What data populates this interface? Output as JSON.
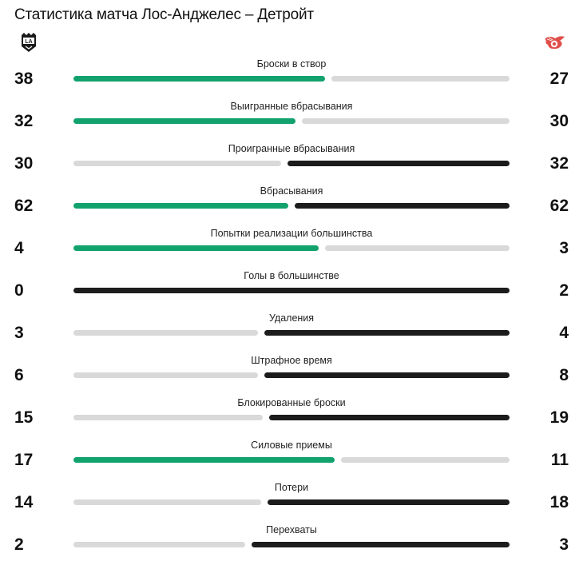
{
  "title": "Статистика матча Лос-Анджелес – Детройт",
  "teams": {
    "home": {
      "name": "Лос-Анджелес",
      "logo_icon": "la-kings-logo-icon",
      "logo_text": "LA",
      "bar_color_lead": "#12a26e"
    },
    "away": {
      "name": "Детройт",
      "logo_icon": "red-wings-logo-icon",
      "bar_color_lead": "#1c1c1c"
    }
  },
  "colors": {
    "home_lead": "#12a26e",
    "away_lead": "#1c1c1c",
    "trailing": "#d9d9d9"
  },
  "stats": [
    {
      "label": "Броски в створ",
      "home": "38",
      "away": "27",
      "home_value": 38,
      "away_value": 27,
      "lead": "home"
    },
    {
      "label": "Выигранные вбрасывания",
      "home": "32",
      "away": "30",
      "home_value": 32,
      "away_value": 30,
      "lead": "home"
    },
    {
      "label": "Проигранные вбрасывания",
      "home": "30",
      "away": "32",
      "home_value": 30,
      "away_value": 32,
      "lead": "away"
    },
    {
      "label": "Вбрасывания",
      "home": "62",
      "away": "62",
      "home_value": 62,
      "away_value": 62,
      "lead": "both"
    },
    {
      "label": "Попытки реализации большинства",
      "home": "4",
      "away": "3",
      "home_value": 4,
      "away_value": 3,
      "lead": "home"
    },
    {
      "label": "Голы в большинстве",
      "home": "0",
      "away": "2",
      "home_value": 0,
      "away_value": 2,
      "lead": "away"
    },
    {
      "label": "Удаления",
      "home": "3",
      "away": "4",
      "home_value": 3,
      "away_value": 4,
      "lead": "away"
    },
    {
      "label": "Штрафное время",
      "home": "6",
      "away": "8",
      "home_value": 6,
      "away_value": 8,
      "lead": "away"
    },
    {
      "label": "Блокированные броски",
      "home": "15",
      "away": "19",
      "home_value": 15,
      "away_value": 19,
      "lead": "away"
    },
    {
      "label": "Силовые приемы",
      "home": "17",
      "away": "11",
      "home_value": 17,
      "away_value": 11,
      "lead": "home"
    },
    {
      "label": "Потери",
      "home": "14",
      "away": "18",
      "home_value": 14,
      "away_value": 18,
      "lead": "away"
    },
    {
      "label": "Перехваты",
      "home": "2",
      "away": "3",
      "home_value": 2,
      "away_value": 3,
      "lead": "away"
    }
  ]
}
